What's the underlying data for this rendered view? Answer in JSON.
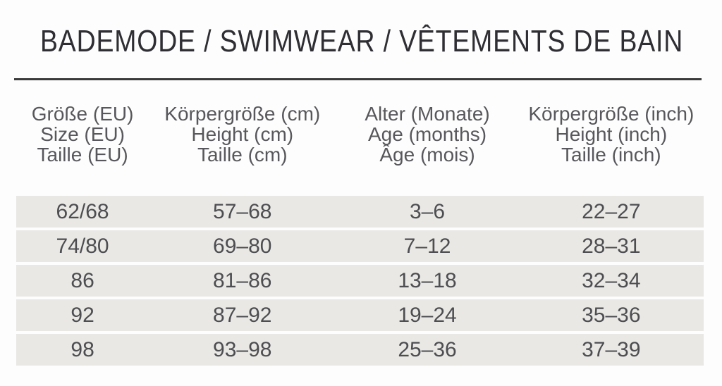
{
  "title": "BADEMODE / SWIMWEAR / VÊTEMENTS DE BAIN",
  "chart_data": {
    "type": "table",
    "title": "BADEMODE / SWIMWEAR / VÊTEMENTS DE BAIN",
    "columns": [
      {
        "id": "size-eu",
        "lines": [
          "Größe (EU)",
          "Size (EU)",
          "Taille (EU)"
        ]
      },
      {
        "id": "height-cm",
        "lines": [
          "Körpergröße (cm)",
          "Height (cm)",
          "Taille (cm)"
        ]
      },
      {
        "id": "age-months",
        "lines": [
          "Alter (Monate)",
          "Age (months)",
          "Âge (mois)"
        ]
      },
      {
        "id": "height-inch",
        "lines": [
          "Körpergröße (inch)",
          "Height (inch)",
          "Taille (inch)"
        ]
      }
    ],
    "rows": [
      [
        "62/68",
        "57–68",
        "3–6",
        "22–27"
      ],
      [
        "74/80",
        "69–80",
        "7–12",
        "28–31"
      ],
      [
        "86",
        "81–86",
        "13–18",
        "32–34"
      ],
      [
        "92",
        "87–92",
        "19–24",
        "35–36"
      ],
      [
        "98",
        "93–98",
        "25–36",
        "37–39"
      ]
    ]
  },
  "colors": {
    "page_background": "#fdfdfd",
    "title_text": "#2e2e33",
    "divider": "#3b3b3d",
    "header_text": "#58585c",
    "row_background": "#e9e8e4",
    "cell_text": "#4d4d52"
  }
}
